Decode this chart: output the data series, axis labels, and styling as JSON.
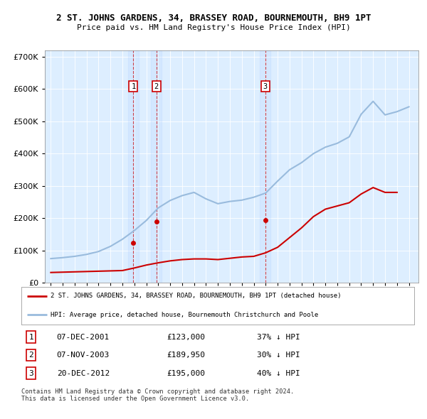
{
  "title": "2 ST. JOHNS GARDENS, 34, BRASSEY ROAD, BOURNEMOUTH, BH9 1PT",
  "subtitle": "Price paid vs. HM Land Registry's House Price Index (HPI)",
  "ylim": [
    0,
    720000
  ],
  "yticks": [
    0,
    100000,
    200000,
    300000,
    400000,
    500000,
    600000,
    700000
  ],
  "ytick_labels": [
    "£0",
    "£100K",
    "£200K",
    "£300K",
    "£400K",
    "£500K",
    "£600K",
    "£700K"
  ],
  "plot_bg": "#ddeeff",
  "hpi_color": "#99bbdd",
  "property_color": "#cc0000",
  "sale_year_floats": [
    2001.92,
    2003.85,
    2012.97
  ],
  "sale_prices": [
    123000,
    189950,
    195000
  ],
  "sale_labels": [
    "1",
    "2",
    "3"
  ],
  "sale_info": [
    [
      "1",
      "07-DEC-2001",
      "£123,000",
      "37% ↓ HPI"
    ],
    [
      "2",
      "07-NOV-2003",
      "£189,950",
      "30% ↓ HPI"
    ],
    [
      "3",
      "20-DEC-2012",
      "£195,000",
      "40% ↓ HPI"
    ]
  ],
  "legend_property": "2 ST. JOHNS GARDENS, 34, BRASSEY ROAD, BOURNEMOUTH, BH9 1PT (detached house)",
  "legend_hpi": "HPI: Average price, detached house, Bournemouth Christchurch and Poole",
  "footer": "Contains HM Land Registry data © Crown copyright and database right 2024.\nThis data is licensed under the Open Government Licence v3.0.",
  "hpi_years": [
    1995,
    1996,
    1997,
    1998,
    1999,
    2000,
    2001,
    2002,
    2003,
    2004,
    2005,
    2006,
    2007,
    2008,
    2009,
    2010,
    2011,
    2012,
    2013,
    2014,
    2015,
    2016,
    2017,
    2018,
    2019,
    2020,
    2021,
    2022,
    2023,
    2024,
    2025
  ],
  "hpi_values": [
    75000,
    78000,
    82000,
    88000,
    97000,
    113000,
    135000,
    162000,
    193000,
    232000,
    255000,
    270000,
    280000,
    260000,
    245000,
    252000,
    256000,
    265000,
    278000,
    315000,
    350000,
    372000,
    400000,
    420000,
    432000,
    452000,
    522000,
    562000,
    520000,
    530000,
    545000
  ],
  "property_years": [
    1995,
    1996,
    1997,
    1998,
    1999,
    2000,
    2001,
    2002,
    2003,
    2004,
    2005,
    2006,
    2007,
    2008,
    2009,
    2010,
    2011,
    2012,
    2013,
    2014,
    2015,
    2016,
    2017,
    2018,
    2019,
    2020,
    2021,
    2022,
    2023,
    2024
  ],
  "property_values": [
    32000,
    33000,
    34000,
    35000,
    36000,
    37000,
    38000,
    46000,
    55000,
    62000,
    68000,
    72000,
    74000,
    74000,
    72000,
    76000,
    80000,
    82000,
    93000,
    110000,
    140000,
    170000,
    205000,
    228000,
    238000,
    248000,
    275000,
    295000,
    280000,
    280000
  ]
}
